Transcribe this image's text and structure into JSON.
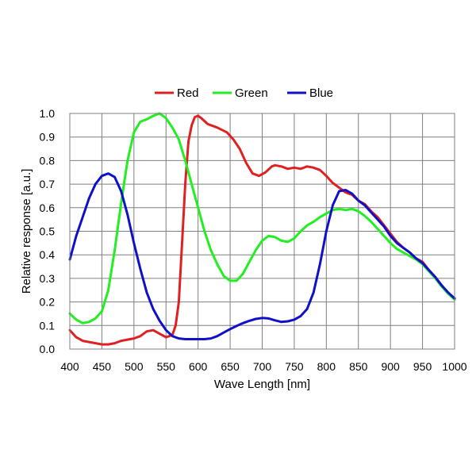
{
  "chart_data": {
    "type": "line",
    "xlabel": "Wave Length [nm]",
    "ylabel": "Relative response [a.u.]",
    "xlim": [
      400,
      1000
    ],
    "ylim": [
      0,
      1.0
    ],
    "x_ticks": [
      "400",
      "450",
      "500",
      "550",
      "600",
      "650",
      "700",
      "750",
      "800",
      "850",
      "900",
      "950",
      "1000"
    ],
    "y_ticks": [
      "0.0",
      "0.1",
      "0.2",
      "0.3",
      "0.4",
      "0.5",
      "0.6",
      "0.7",
      "0.8",
      "0.9",
      "1.0"
    ],
    "grid": true,
    "legend_position": "top-center",
    "series": [
      {
        "name": "Red",
        "color": "#e02020",
        "points": [
          [
            400,
            0.08
          ],
          [
            410,
            0.05
          ],
          [
            420,
            0.035
          ],
          [
            430,
            0.03
          ],
          [
            440,
            0.025
          ],
          [
            450,
            0.02
          ],
          [
            460,
            0.02
          ],
          [
            470,
            0.025
          ],
          [
            480,
            0.035
          ],
          [
            490,
            0.04
          ],
          [
            500,
            0.045
          ],
          [
            510,
            0.055
          ],
          [
            520,
            0.075
          ],
          [
            530,
            0.08
          ],
          [
            540,
            0.065
          ],
          [
            550,
            0.05
          ],
          [
            560,
            0.06
          ],
          [
            565,
            0.1
          ],
          [
            570,
            0.2
          ],
          [
            575,
            0.45
          ],
          [
            580,
            0.7
          ],
          [
            585,
            0.88
          ],
          [
            590,
            0.95
          ],
          [
            595,
            0.985
          ],
          [
            600,
            0.99
          ],
          [
            605,
            0.98
          ],
          [
            615,
            0.955
          ],
          [
            630,
            0.94
          ],
          [
            645,
            0.92
          ],
          [
            655,
            0.89
          ],
          [
            665,
            0.85
          ],
          [
            675,
            0.79
          ],
          [
            685,
            0.745
          ],
          [
            695,
            0.735
          ],
          [
            705,
            0.75
          ],
          [
            715,
            0.775
          ],
          [
            720,
            0.78
          ],
          [
            730,
            0.775
          ],
          [
            740,
            0.765
          ],
          [
            750,
            0.77
          ],
          [
            760,
            0.765
          ],
          [
            770,
            0.775
          ],
          [
            780,
            0.77
          ],
          [
            790,
            0.76
          ],
          [
            800,
            0.735
          ],
          [
            810,
            0.705
          ],
          [
            820,
            0.685
          ],
          [
            830,
            0.665
          ],
          [
            840,
            0.655
          ],
          [
            850,
            0.63
          ],
          [
            860,
            0.615
          ],
          [
            870,
            0.585
          ],
          [
            880,
            0.56
          ],
          [
            890,
            0.525
          ],
          [
            900,
            0.49
          ],
          [
            910,
            0.455
          ],
          [
            920,
            0.43
          ],
          [
            930,
            0.41
          ],
          [
            940,
            0.385
          ],
          [
            950,
            0.37
          ],
          [
            960,
            0.335
          ],
          [
            970,
            0.305
          ],
          [
            980,
            0.27
          ],
          [
            990,
            0.235
          ],
          [
            1000,
            0.215
          ]
        ]
      },
      {
        "name": "Green",
        "color": "#22ee22",
        "points": [
          [
            400,
            0.15
          ],
          [
            410,
            0.125
          ],
          [
            420,
            0.11
          ],
          [
            430,
            0.115
          ],
          [
            440,
            0.13
          ],
          [
            450,
            0.16
          ],
          [
            460,
            0.25
          ],
          [
            470,
            0.42
          ],
          [
            480,
            0.62
          ],
          [
            490,
            0.8
          ],
          [
            500,
            0.92
          ],
          [
            510,
            0.965
          ],
          [
            520,
            0.975
          ],
          [
            530,
            0.99
          ],
          [
            540,
            1.0
          ],
          [
            550,
            0.98
          ],
          [
            560,
            0.94
          ],
          [
            570,
            0.89
          ],
          [
            580,
            0.8
          ],
          [
            590,
            0.7
          ],
          [
            600,
            0.6
          ],
          [
            610,
            0.5
          ],
          [
            620,
            0.42
          ],
          [
            630,
            0.36
          ],
          [
            640,
            0.31
          ],
          [
            650,
            0.29
          ],
          [
            660,
            0.29
          ],
          [
            670,
            0.32
          ],
          [
            680,
            0.37
          ],
          [
            690,
            0.42
          ],
          [
            700,
            0.46
          ],
          [
            710,
            0.48
          ],
          [
            720,
            0.475
          ],
          [
            730,
            0.46
          ],
          [
            740,
            0.455
          ],
          [
            750,
            0.47
          ],
          [
            760,
            0.5
          ],
          [
            770,
            0.525
          ],
          [
            780,
            0.54
          ],
          [
            790,
            0.56
          ],
          [
            800,
            0.575
          ],
          [
            810,
            0.59
          ],
          [
            820,
            0.595
          ],
          [
            830,
            0.59
          ],
          [
            840,
            0.595
          ],
          [
            850,
            0.585
          ],
          [
            860,
            0.565
          ],
          [
            870,
            0.54
          ],
          [
            880,
            0.51
          ],
          [
            890,
            0.48
          ],
          [
            900,
            0.45
          ],
          [
            910,
            0.425
          ],
          [
            920,
            0.41
          ],
          [
            930,
            0.395
          ],
          [
            940,
            0.38
          ],
          [
            950,
            0.36
          ],
          [
            960,
            0.33
          ],
          [
            970,
            0.3
          ],
          [
            980,
            0.265
          ],
          [
            990,
            0.235
          ],
          [
            1000,
            0.21
          ]
        ]
      },
      {
        "name": "Blue",
        "color": "#1010c8",
        "points": [
          [
            400,
            0.38
          ],
          [
            410,
            0.48
          ],
          [
            420,
            0.56
          ],
          [
            430,
            0.64
          ],
          [
            440,
            0.7
          ],
          [
            450,
            0.735
          ],
          [
            460,
            0.745
          ],
          [
            470,
            0.73
          ],
          [
            480,
            0.67
          ],
          [
            490,
            0.57
          ],
          [
            500,
            0.45
          ],
          [
            510,
            0.34
          ],
          [
            520,
            0.24
          ],
          [
            530,
            0.17
          ],
          [
            540,
            0.12
          ],
          [
            550,
            0.08
          ],
          [
            560,
            0.055
          ],
          [
            570,
            0.045
          ],
          [
            580,
            0.042
          ],
          [
            590,
            0.042
          ],
          [
            600,
            0.042
          ],
          [
            610,
            0.042
          ],
          [
            620,
            0.045
          ],
          [
            630,
            0.055
          ],
          [
            640,
            0.07
          ],
          [
            650,
            0.085
          ],
          [
            660,
            0.098
          ],
          [
            670,
            0.11
          ],
          [
            680,
            0.12
          ],
          [
            690,
            0.128
          ],
          [
            700,
            0.132
          ],
          [
            710,
            0.13
          ],
          [
            720,
            0.122
          ],
          [
            730,
            0.115
          ],
          [
            740,
            0.118
          ],
          [
            750,
            0.125
          ],
          [
            760,
            0.14
          ],
          [
            770,
            0.17
          ],
          [
            780,
            0.24
          ],
          [
            790,
            0.36
          ],
          [
            800,
            0.5
          ],
          [
            810,
            0.61
          ],
          [
            820,
            0.67
          ],
          [
            830,
            0.675
          ],
          [
            840,
            0.66
          ],
          [
            850,
            0.63
          ],
          [
            860,
            0.61
          ],
          [
            870,
            0.58
          ],
          [
            880,
            0.55
          ],
          [
            890,
            0.52
          ],
          [
            900,
            0.48
          ],
          [
            910,
            0.45
          ],
          [
            920,
            0.43
          ],
          [
            930,
            0.41
          ],
          [
            940,
            0.385
          ],
          [
            950,
            0.365
          ],
          [
            960,
            0.335
          ],
          [
            970,
            0.305
          ],
          [
            980,
            0.27
          ],
          [
            990,
            0.24
          ],
          [
            1000,
            0.215
          ]
        ]
      }
    ]
  }
}
